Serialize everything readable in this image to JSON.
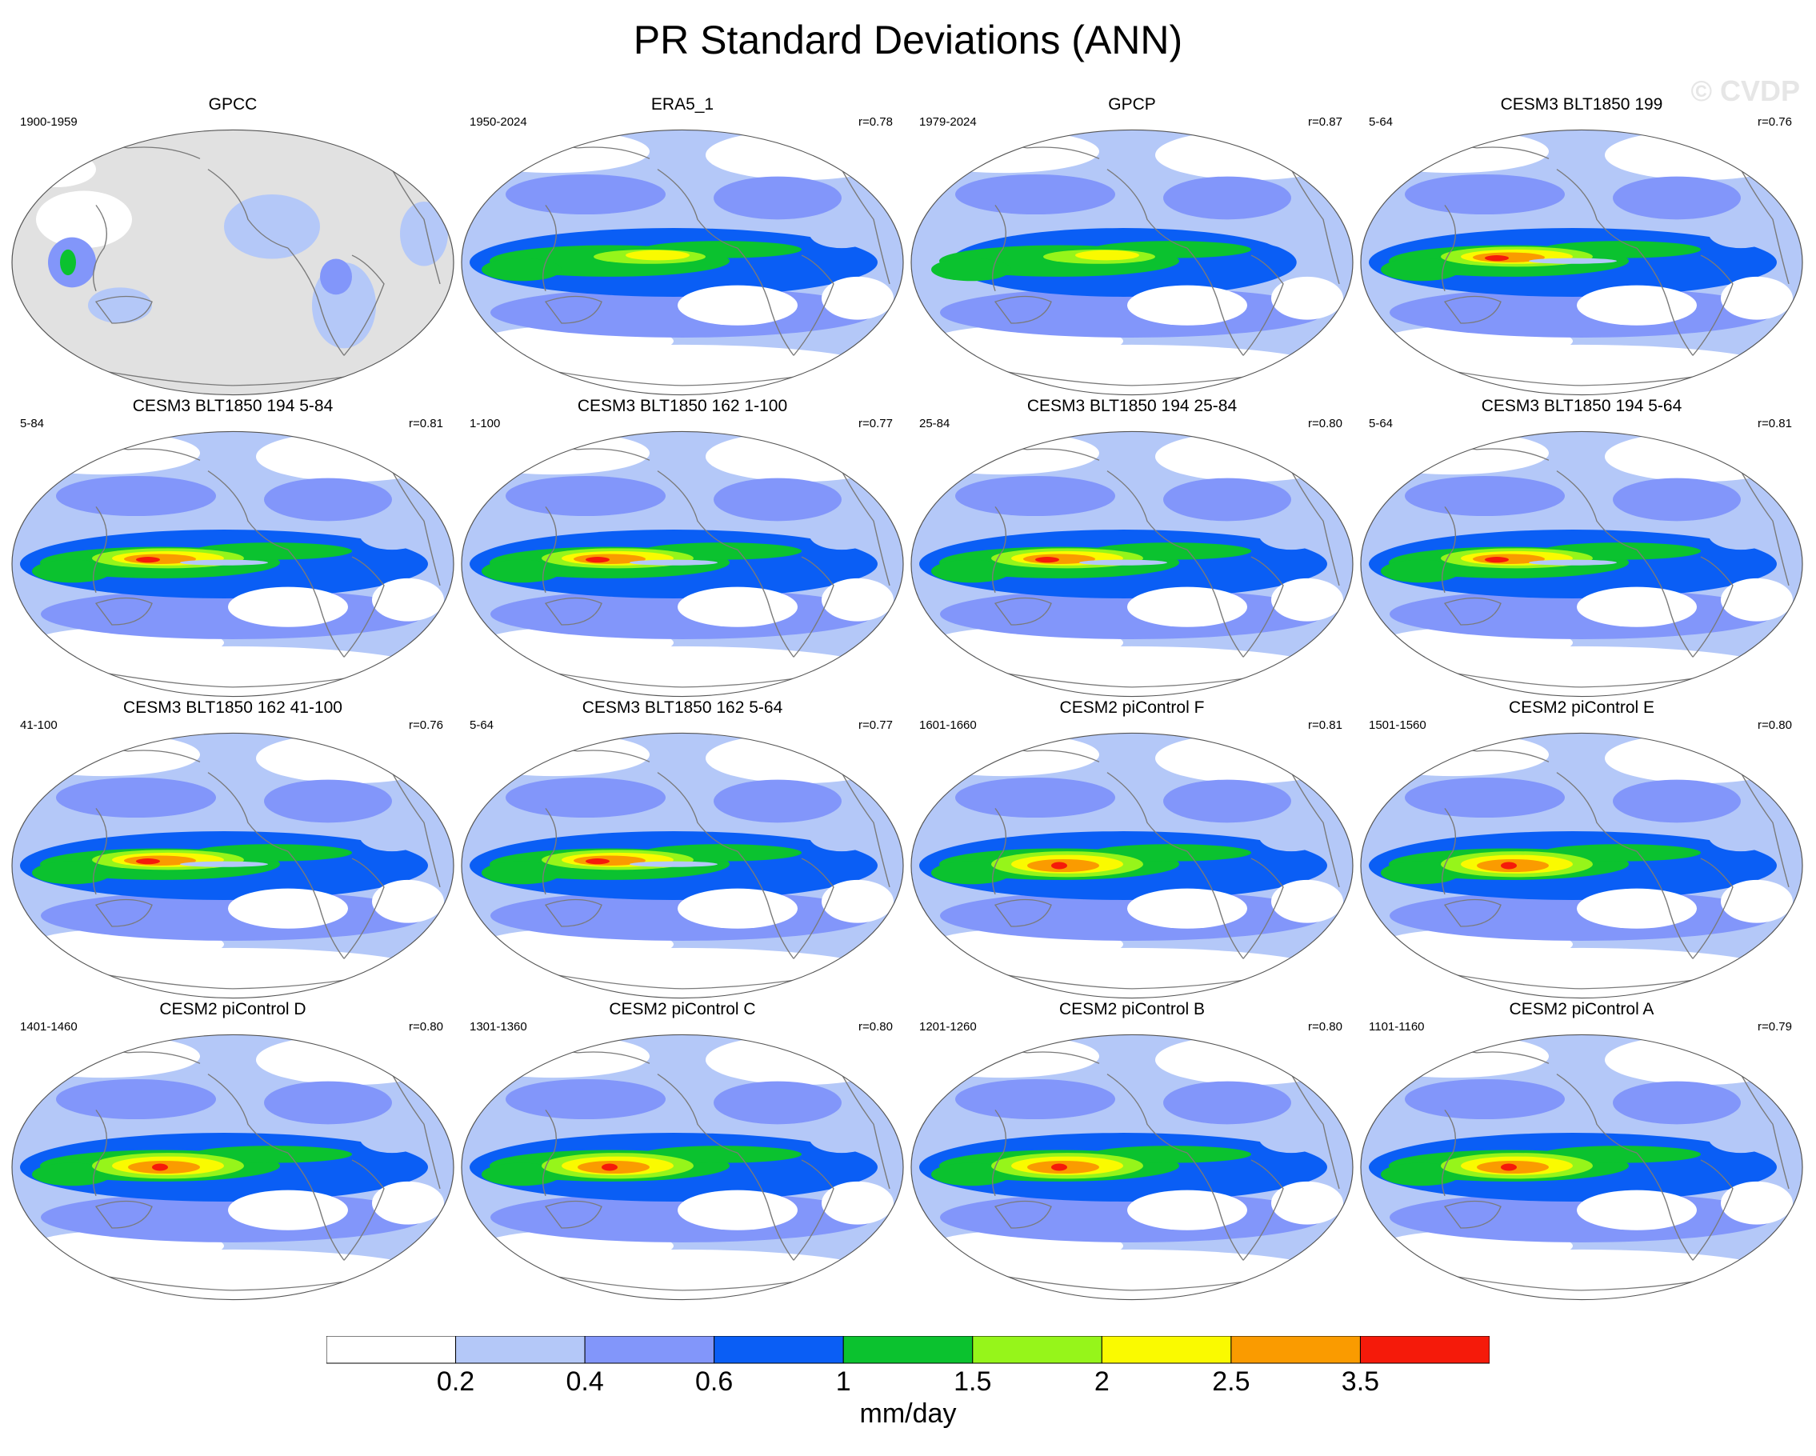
{
  "title": "PR Standard Deviations (ANN)",
  "watermark": "© CVDP",
  "colors": {
    "levels": [
      "#ffffff",
      "#b4c8f8",
      "#8296fa",
      "#0a5ef5",
      "#0bc22f",
      "#96f51a",
      "#fafa00",
      "#fa9b00",
      "#f51a0a"
    ],
    "land_missing": "#e1e1e1",
    "coastline": "#7a7a7a",
    "outline": "#555555"
  },
  "panels": [
    {
      "title": "GPCC",
      "years": "1900-1959",
      "corr": "",
      "variant": "obs_land"
    },
    {
      "title": "ERA5_1",
      "years": "1950-2024",
      "corr": "r=0.78",
      "variant": "era5"
    },
    {
      "title": "GPCP",
      "years": "1979-2024",
      "corr": "r=0.87",
      "variant": "gpcp"
    },
    {
      "title": "CESM3 BLT1850 199",
      "years": "5-64",
      "corr": "r=0.76",
      "variant": "cesm3"
    },
    {
      "title": "CESM3 BLT1850 194 5-84",
      "years": "5-84",
      "corr": "r=0.81",
      "variant": "cesm3"
    },
    {
      "title": "CESM3 BLT1850 162 1-100",
      "years": "1-100",
      "corr": "r=0.77",
      "variant": "cesm3"
    },
    {
      "title": "CESM3 BLT1850 194 25-84",
      "years": "25-84",
      "corr": "r=0.80",
      "variant": "cesm3"
    },
    {
      "title": "CESM3 BLT1850 194 5-64",
      "years": "5-64",
      "corr": "r=0.81",
      "variant": "cesm3"
    },
    {
      "title": "CESM3 BLT1850 162 41-100",
      "years": "41-100",
      "corr": "r=0.76",
      "variant": "cesm3"
    },
    {
      "title": "CESM3 BLT1850 162 5-64",
      "years": "5-64",
      "corr": "r=0.77",
      "variant": "cesm3"
    },
    {
      "title": "CESM2 piControl F",
      "years": "1601-1660",
      "corr": "r=0.81",
      "variant": "cesm2"
    },
    {
      "title": "CESM2 piControl E",
      "years": "1501-1560",
      "corr": "r=0.80",
      "variant": "cesm2"
    },
    {
      "title": "CESM2 piControl D",
      "years": "1401-1460",
      "corr": "r=0.80",
      "variant": "cesm2"
    },
    {
      "title": "CESM2 piControl C",
      "years": "1301-1360",
      "corr": "r=0.80",
      "variant": "cesm2"
    },
    {
      "title": "CESM2 piControl B",
      "years": "1201-1260",
      "corr": "r=0.80",
      "variant": "cesm2"
    },
    {
      "title": "CESM2 piControl A",
      "years": "1101-1160",
      "corr": "r=0.79",
      "variant": "cesm2"
    }
  ],
  "colorbar": {
    "tick_labels": [
      "0.2",
      "0.4",
      "0.6",
      "1",
      "1.5",
      "2",
      "2.5",
      "3.5"
    ],
    "unit": "mm/day"
  }
}
